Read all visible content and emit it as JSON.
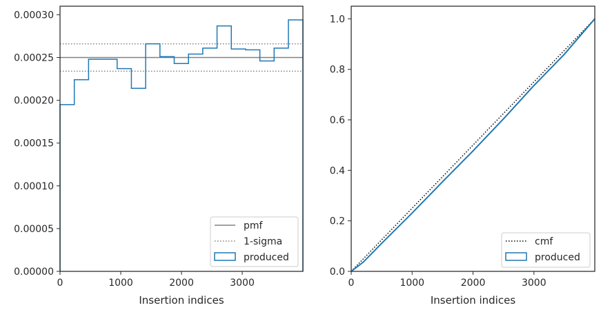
{
  "chart_data": [
    {
      "type": "histogram",
      "xlabel": "Insertion indices",
      "ylabel": "",
      "xlim": [
        0,
        3999
      ],
      "ylim": [
        0,
        0.00031
      ],
      "xticks": [
        "0",
        "1000",
        "2000",
        "3000"
      ],
      "yticks": [
        "0.00000",
        "0.00005",
        "0.00010",
        "0.00015",
        "0.00020",
        "0.00025",
        "0.00030"
      ],
      "grid": false,
      "legend_position": "lower-right",
      "legend": [
        "pmf",
        "1-sigma",
        "produced"
      ],
      "reference_lines": {
        "pmf": 0.00025,
        "sigma_low": 0.000234,
        "sigma_high": 0.000266
      },
      "bin_edges": [
        0,
        235,
        470,
        705,
        940,
        1175,
        1410,
        1645,
        1880,
        2115,
        2350,
        2585,
        2820,
        3055,
        3290,
        3525,
        3760,
        3999
      ],
      "series": [
        {
          "name": "produced",
          "values": [
            0.000195,
            0.000224,
            0.000248,
            0.000248,
            0.000237,
            0.000214,
            0.000266,
            0.000251,
            0.000243,
            0.000254,
            0.000261,
            0.000287,
            0.00026,
            0.000259,
            0.000246,
            0.000261,
            0.000294
          ]
        }
      ],
      "colors": {
        "produced": "#1f77b4",
        "pmf": "#808080",
        "sigma": "#808080"
      }
    },
    {
      "type": "line",
      "xlabel": "Insertion indices",
      "ylabel": "",
      "xlim": [
        0,
        3999
      ],
      "ylim": [
        0,
        1.05
      ],
      "xticks": [
        "0",
        "1000",
        "2000",
        "3000"
      ],
      "yticks": [
        "0.0",
        "0.2",
        "0.4",
        "0.6",
        "0.8",
        "1.0"
      ],
      "grid": false,
      "legend_position": "lower-right",
      "legend": [
        "cmf",
        "produced"
      ],
      "series": [
        {
          "name": "cmf",
          "x": [
            0,
            3999
          ],
          "y": [
            0,
            1.0
          ]
        },
        {
          "name": "produced",
          "x": [
            0,
            200,
            500,
            1000,
            1500,
            2000,
            2500,
            3000,
            3500,
            3999
          ],
          "y": [
            0,
            0.037,
            0.111,
            0.231,
            0.355,
            0.477,
            0.604,
            0.736,
            0.86,
            1.0
          ]
        }
      ],
      "colors": {
        "produced": "#1f77b4",
        "cmf": "#000000"
      }
    }
  ]
}
